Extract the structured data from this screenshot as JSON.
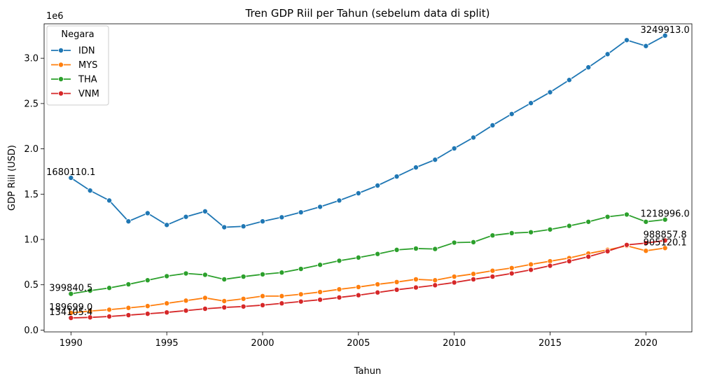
{
  "chart_data": {
    "type": "line",
    "title": "Tren GDP Riil per Tahun (sebelum data di split)",
    "xlabel": "Tahun",
    "ylabel": "GDP Riil (USD)",
    "y_offset_text": "1e6",
    "xlim": [
      1988.6,
      2022.4
    ],
    "ylim": [
      -20000,
      3380000
    ],
    "x_ticks": [
      1990,
      1995,
      2000,
      2005,
      2010,
      2015,
      2020
    ],
    "y_ticks": [
      0,
      500000,
      1000000,
      1500000,
      2000000,
      2500000,
      3000000
    ],
    "y_tick_labels": [
      "0.0",
      "0.5",
      "1.0",
      "1.5",
      "2.0",
      "2.5",
      "3.0"
    ],
    "grid": false,
    "legend": {
      "title": "Negara",
      "placement": "top-left"
    },
    "x": [
      1990,
      1991,
      1992,
      1993,
      1994,
      1995,
      1996,
      1997,
      1998,
      1999,
      2000,
      2001,
      2002,
      2003,
      2004,
      2005,
      2006,
      2007,
      2008,
      2009,
      2010,
      2011,
      2012,
      2013,
      2014,
      2015,
      2016,
      2017,
      2018,
      2019,
      2020,
      2021
    ],
    "series": [
      {
        "name": "IDN",
        "color": "#1f77b4",
        "values": [
          1680110.1,
          1540000,
          1430000,
          1200000,
          1290000,
          1160000,
          1250000,
          1310000,
          1135000,
          1145000,
          1200000,
          1245000,
          1300000,
          1360000,
          1430000,
          1510000,
          1595000,
          1695000,
          1795000,
          1880000,
          2005000,
          2125000,
          2260000,
          2385000,
          2505000,
          2625000,
          2760000,
          2900000,
          3045000,
          3200000,
          3135000,
          3249913.0
        ]
      },
      {
        "name": "MYS",
        "color": "#ff7f0e",
        "values": [
          189699.0,
          210000,
          225000,
          245000,
          265000,
          295000,
          325000,
          355000,
          320000,
          345000,
          375000,
          375000,
          395000,
          420000,
          450000,
          475000,
          505000,
          530000,
          560000,
          550000,
          590000,
          620000,
          655000,
          685000,
          725000,
          760000,
          795000,
          845000,
          885000,
          930000,
          875000,
          905120.1
        ]
      },
      {
        "name": "THA",
        "color": "#2ca02c",
        "values": [
          399840.5,
          435000,
          465000,
          505000,
          550000,
          595000,
          625000,
          610000,
          560000,
          590000,
          615000,
          635000,
          675000,
          720000,
          765000,
          800000,
          840000,
          885000,
          900000,
          895000,
          965000,
          970000,
          1045000,
          1070000,
          1080000,
          1110000,
          1150000,
          1195000,
          1250000,
          1275000,
          1195000,
          1218996.0
        ]
      },
      {
        "name": "VNM",
        "color": "#d62728",
        "values": [
          134105.4,
          140000,
          150000,
          165000,
          180000,
          195000,
          215000,
          235000,
          250000,
          260000,
          275000,
          295000,
          315000,
          335000,
          360000,
          385000,
          415000,
          445000,
          470000,
          495000,
          525000,
          560000,
          590000,
          625000,
          665000,
          710000,
          760000,
          810000,
          870000,
          940000,
          960000,
          988857.8
        ]
      }
    ],
    "annotations": [
      {
        "series": "IDN",
        "x": 1990,
        "y": 1680110.1,
        "text": "1680110.1"
      },
      {
        "series": "IDN",
        "x": 2021,
        "y": 3249913.0,
        "text": "3249913.0"
      },
      {
        "series": "MYS",
        "x": 1990,
        "y": 189699.0,
        "text": "189699.0"
      },
      {
        "series": "MYS",
        "x": 2021,
        "y": 905120.1,
        "text": "905120.1"
      },
      {
        "series": "THA",
        "x": 1990,
        "y": 399840.5,
        "text": "399840.5"
      },
      {
        "series": "THA",
        "x": 2021,
        "y": 1218996.0,
        "text": "1218996.0"
      },
      {
        "series": "VNM",
        "x": 1990,
        "y": 134105.4,
        "text": "134105.4"
      },
      {
        "series": "VNM",
        "x": 2021,
        "y": 988857.8,
        "text": "988857.8"
      }
    ]
  }
}
